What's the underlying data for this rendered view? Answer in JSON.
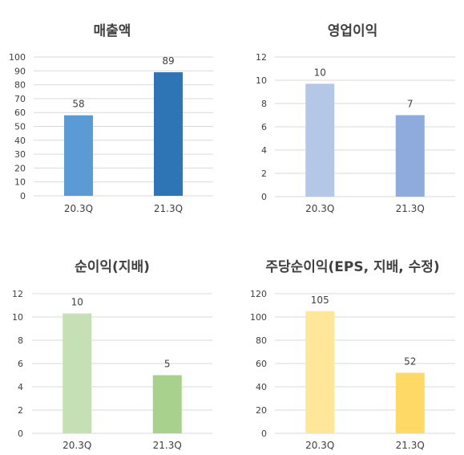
{
  "chart_data": [
    {
      "type": "bar",
      "title": "매출액",
      "categories": [
        "20.3Q",
        "21.3Q"
      ],
      "values": [
        58,
        89
      ],
      "ylim": [
        0,
        100
      ],
      "yticks": [
        "0",
        "10",
        "20",
        "30",
        "40",
        "50",
        "60",
        "70",
        "80",
        "90",
        "100"
      ],
      "data_labels": [
        "58",
        "89"
      ],
      "colors": [
        "#5b9bd5",
        "#2e75b6"
      ],
      "grid": true
    },
    {
      "type": "bar",
      "title": "영업이익",
      "categories": [
        "20.3Q",
        "21.3Q"
      ],
      "values": [
        9.7,
        7
      ],
      "ylim": [
        0,
        12
      ],
      "yticks": [
        "0",
        "2",
        "4",
        "6",
        "8",
        "10",
        "12"
      ],
      "data_labels": [
        "10",
        "7"
      ],
      "colors": [
        "#b4c7e7",
        "#8faadc"
      ],
      "grid": true
    },
    {
      "type": "bar",
      "title": "순이익(지배)",
      "categories": [
        "20.3Q",
        "21.3Q"
      ],
      "values": [
        10.3,
        5
      ],
      "ylim": [
        0,
        12
      ],
      "yticks": [
        "0",
        "2",
        "4",
        "6",
        "8",
        "10",
        "12"
      ],
      "data_labels": [
        "10",
        "5"
      ],
      "colors": [
        "#c5e0b4",
        "#a9d18e"
      ],
      "grid": true
    },
    {
      "type": "bar",
      "title": "주당순이익(EPS, 지배, 수정)",
      "categories": [
        "20.3Q",
        "21.3Q"
      ],
      "values": [
        105,
        52
      ],
      "ylim": [
        0,
        120
      ],
      "yticks": [
        "0",
        "20",
        "40",
        "60",
        "80",
        "100",
        "120"
      ],
      "data_labels": [
        "105",
        "52"
      ],
      "colors": [
        "#ffe699",
        "#ffd966"
      ],
      "grid": true
    }
  ]
}
